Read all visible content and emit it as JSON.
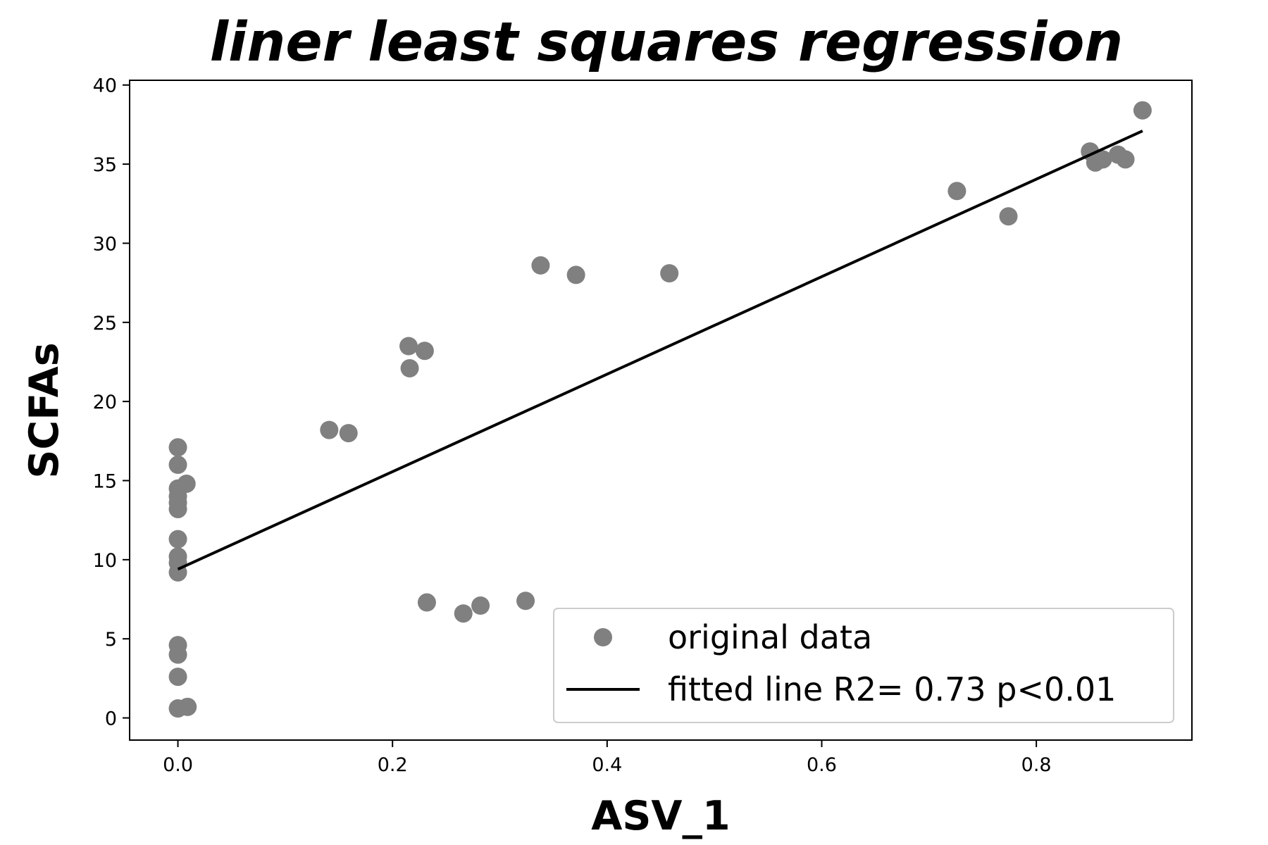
{
  "chart_data": {
    "type": "scatter",
    "title": "liner least squares regression",
    "xlabel": "ASV_1",
    "ylabel": "SCFAs",
    "xlim": [
      -0.045,
      0.945
    ],
    "ylim": [
      -1.4,
      40.3
    ],
    "x_ticks": [
      0.0,
      0.2,
      0.4,
      0.6,
      0.8
    ],
    "x_tick_labels": [
      "0.0",
      "0.2",
      "0.4",
      "0.6",
      "0.8"
    ],
    "y_ticks": [
      0,
      5,
      10,
      15,
      20,
      25,
      30,
      35,
      40
    ],
    "y_tick_labels": [
      "0",
      "5",
      "10",
      "15",
      "20",
      "25",
      "30",
      "35",
      "40"
    ],
    "grid": false,
    "legend_position": "bottom-right",
    "colors": {
      "points": "#808080",
      "line": "#000000",
      "legend_border": "#cccccc"
    },
    "series": [
      {
        "name": "original data",
        "kind": "scatter",
        "points": [
          [
            0.0,
            17.1
          ],
          [
            0.0,
            16.0
          ],
          [
            0.0,
            14.5
          ],
          [
            0.0,
            14.0
          ],
          [
            0.0,
            13.6
          ],
          [
            0.0,
            13.2
          ],
          [
            0.0,
            11.3
          ],
          [
            0.0,
            10.2
          ],
          [
            0.0,
            9.8
          ],
          [
            0.0,
            9.2
          ],
          [
            0.0,
            4.6
          ],
          [
            0.0,
            4.0
          ],
          [
            0.0,
            2.6
          ],
          [
            0.0,
            0.6
          ],
          [
            0.009,
            0.7
          ],
          [
            0.008,
            14.8
          ],
          [
            0.141,
            18.2
          ],
          [
            0.159,
            18.0
          ],
          [
            0.215,
            23.5
          ],
          [
            0.216,
            22.1
          ],
          [
            0.23,
            23.2
          ],
          [
            0.232,
            7.3
          ],
          [
            0.266,
            6.6
          ],
          [
            0.282,
            7.1
          ],
          [
            0.324,
            7.4
          ],
          [
            0.338,
            28.6
          ],
          [
            0.371,
            28.0
          ],
          [
            0.458,
            28.1
          ],
          [
            0.726,
            33.3
          ],
          [
            0.774,
            31.7
          ],
          [
            0.85,
            35.8
          ],
          [
            0.855,
            35.1
          ],
          [
            0.862,
            35.3
          ],
          [
            0.876,
            35.6
          ],
          [
            0.883,
            35.3
          ],
          [
            0.899,
            38.4
          ]
        ]
      },
      {
        "name": "fitted line R2= 0.73 p<0.01",
        "kind": "line",
        "x": [
          0.0,
          0.899
        ],
        "y": [
          9.4,
          37.1
        ]
      }
    ]
  }
}
